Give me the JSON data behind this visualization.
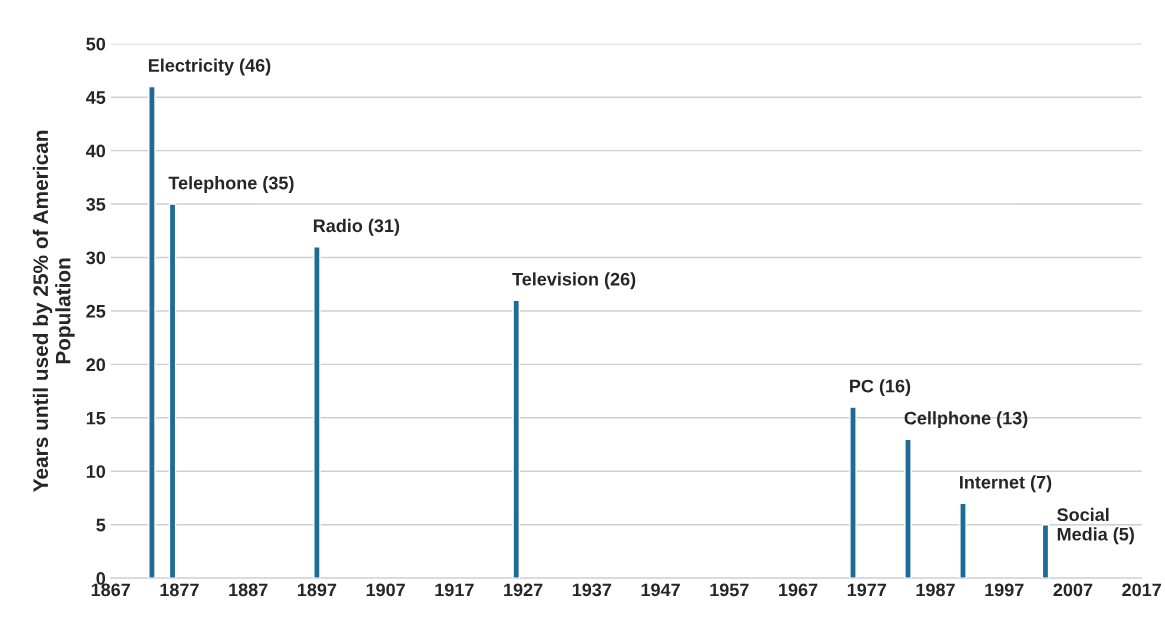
{
  "chart_data": {
    "type": "bar",
    "ylabel": "Years until used by 25% of American\nPopulation",
    "x": [
      1873,
      1876,
      1897,
      1926,
      1975,
      1983,
      1991,
      2003
    ],
    "values": [
      46,
      35,
      31,
      26,
      16,
      13,
      7,
      5
    ],
    "color": "#1f6b98",
    "xlim": [
      1867,
      2017
    ],
    "xticks": [
      1867,
      1877,
      1887,
      1897,
      1907,
      1917,
      1927,
      1937,
      1947,
      1957,
      1967,
      1977,
      1987,
      1997,
      2007,
      2017
    ],
    "ylim": [
      0,
      50
    ],
    "yticks": [
      0,
      5,
      10,
      15,
      20,
      25,
      30,
      35,
      40,
      45,
      50
    ],
    "grid": "y",
    "annotations": [
      {
        "text": "Electricity (46)",
        "x": 1873,
        "y": 46
      },
      {
        "text": "Telephone (35)",
        "x": 1876,
        "y": 35
      },
      {
        "text": "Radio (31)",
        "x": 1897,
        "y": 31
      },
      {
        "text": "Television (26)",
        "x": 1926,
        "y": 26
      },
      {
        "text": "PC (16)",
        "x": 1975,
        "y": 16
      },
      {
        "text": "Cellphone (13)",
        "x": 1983,
        "y": 13
      },
      {
        "text": "Internet (7)",
        "x": 1991,
        "y": 7
      },
      {
        "text": "Social\nMedia (5)",
        "x": 2003,
        "y": 5
      }
    ]
  }
}
